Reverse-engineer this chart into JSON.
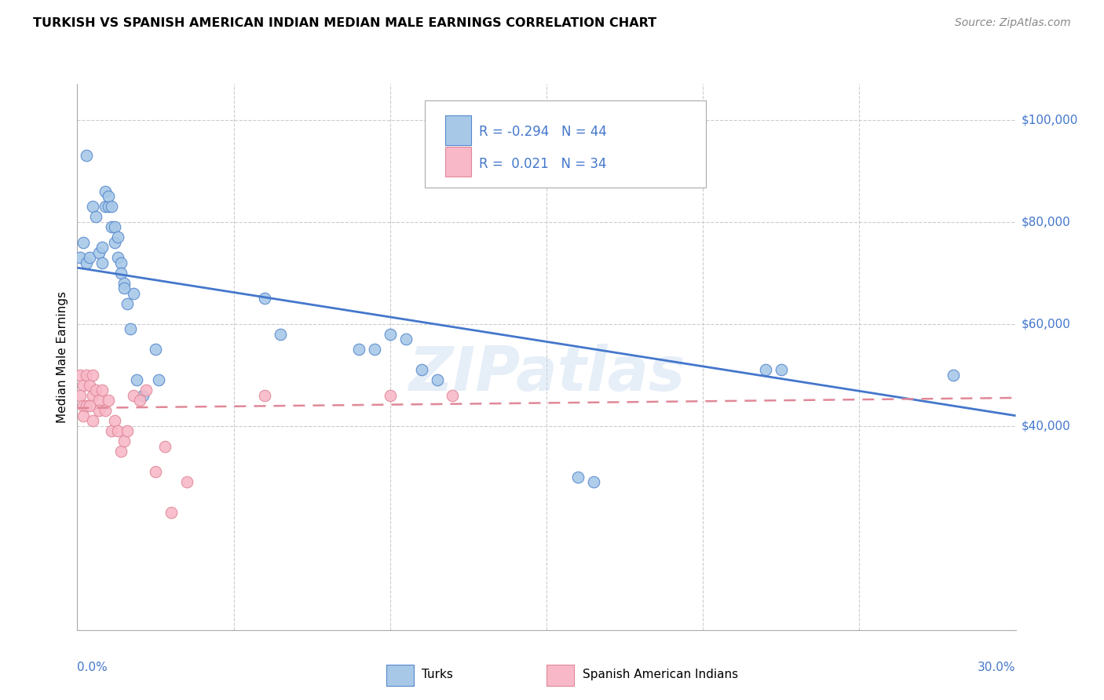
{
  "title": "TURKISH VS SPANISH AMERICAN INDIAN MEDIAN MALE EARNINGS CORRELATION CHART",
  "source": "Source: ZipAtlas.com",
  "ylabel": "Median Male Earnings",
  "yticks": [
    40000,
    60000,
    80000,
    100000
  ],
  "ytick_labels": [
    "$40,000",
    "$60,000",
    "$80,000",
    "$100,000"
  ],
  "legend_turks": "Turks",
  "legend_spanish": "Spanish American Indians",
  "watermark": "ZIPatlas",
  "turks_color": "#a8c8e8",
  "turks_edge_color": "#5588cc",
  "turks_line_color": "#4477cc",
  "spanish_color": "#f8b8c8",
  "spanish_edge_color": "#e08898",
  "spanish_line_color": "#e08898",
  "text_color": "#4477cc",
  "turks_x": [
    0.001,
    0.002,
    0.003,
    0.004,
    0.005,
    0.006,
    0.007,
    0.008,
    0.009,
    0.009,
    0.01,
    0.01,
    0.011,
    0.011,
    0.012,
    0.012,
    0.013,
    0.013,
    0.014,
    0.014,
    0.015,
    0.016,
    0.017,
    0.018,
    0.019,
    0.021,
    0.025,
    0.026,
    0.06,
    0.065,
    0.09,
    0.095,
    0.1,
    0.105,
    0.11,
    0.115,
    0.16,
    0.165,
    0.22,
    0.225,
    0.28,
    0.003,
    0.008,
    0.015
  ],
  "turks_y": [
    73000,
    76000,
    72000,
    73000,
    83000,
    81000,
    74000,
    72000,
    86000,
    83000,
    83000,
    85000,
    83000,
    79000,
    79000,
    76000,
    77000,
    73000,
    72000,
    70000,
    68000,
    64000,
    59000,
    66000,
    49000,
    46000,
    55000,
    49000,
    65000,
    58000,
    55000,
    55000,
    58000,
    57000,
    51000,
    49000,
    30000,
    29000,
    51000,
    51000,
    50000,
    93000,
    75000,
    67000
  ],
  "spanish_x": [
    0.001,
    0.002,
    0.003,
    0.004,
    0.005,
    0.005,
    0.006,
    0.007,
    0.007,
    0.008,
    0.009,
    0.01,
    0.011,
    0.012,
    0.013,
    0.014,
    0.015,
    0.016,
    0.018,
    0.02,
    0.022,
    0.025,
    0.028,
    0.03,
    0.035,
    0.06,
    0.1,
    0.12,
    0.001,
    0.002,
    0.002,
    0.003,
    0.004,
    0.005
  ],
  "spanish_y": [
    50000,
    48000,
    50000,
    48000,
    50000,
    46000,
    47000,
    45000,
    43000,
    47000,
    43000,
    45000,
    39000,
    41000,
    39000,
    35000,
    37000,
    39000,
    46000,
    45000,
    47000,
    31000,
    36000,
    23000,
    29000,
    46000,
    46000,
    46000,
    46000,
    44000,
    42000,
    44000,
    44000,
    41000
  ],
  "xlim": [
    0,
    0.3
  ],
  "ylim": [
    0,
    107000
  ],
  "turks_trendline_x": [
    0.0,
    0.3
  ],
  "turks_trendline_y": [
    71000,
    42000
  ],
  "spanish_trendline_x": [
    0.0,
    0.3
  ],
  "spanish_trendline_y": [
    43500,
    45500
  ]
}
